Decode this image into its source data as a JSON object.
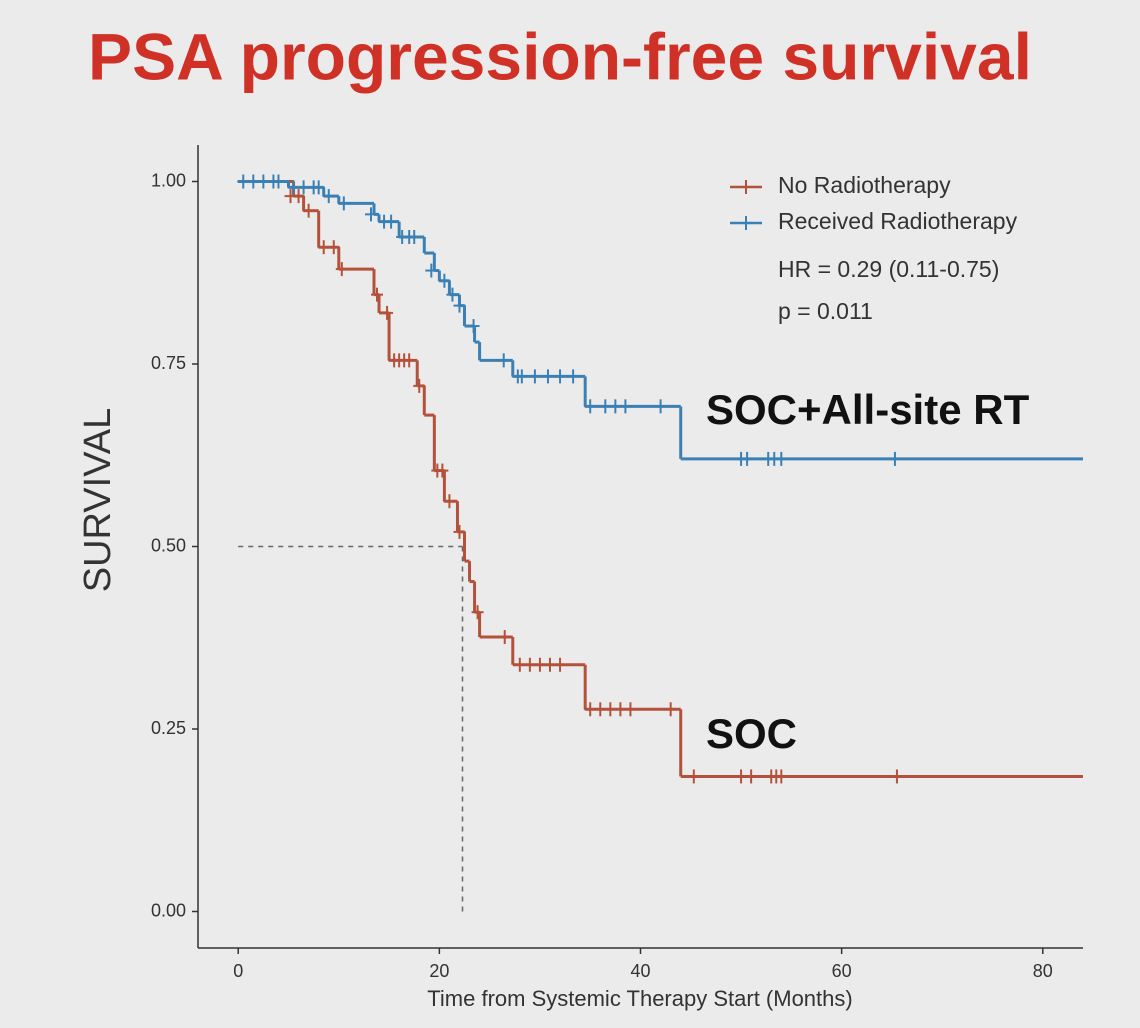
{
  "chart_data": {
    "type": "step",
    "title": "PSA progression-free survival",
    "xlabel": "Time from Systemic Therapy Start (Months)",
    "ylabel": "SURVIVAL",
    "xlim": [
      -4,
      84
    ],
    "ylim": [
      -0.05,
      1.05
    ],
    "xticks": [
      0,
      20,
      40,
      60,
      80
    ],
    "yticks": [
      {
        "value": 0,
        "label": "0.00"
      },
      0.25,
      {
        "value": 0.5,
        "label": "0.50"
      },
      0.75,
      {
        "value": 1,
        "label": "1.00"
      }
    ],
    "legend": "top-right",
    "annotations": [
      "HR = 0.29 (0.11-0.75)",
      "p = 0.011"
    ],
    "curve_labels": [
      "SOC+All-site RT",
      "SOC"
    ],
    "median": {
      "x": 22.3,
      "y": 0.5
    },
    "series": [
      {
        "name": "No Radiotherapy",
        "color": "#b4513b",
        "x": [
          0,
          5.5,
          6.5,
          8,
          10,
          13.5,
          14,
          15,
          17.8,
          18.5,
          19.5,
          20.5,
          21.8,
          22.5,
          23,
          23.5,
          24,
          27.3,
          34.5,
          44
        ],
        "values": [
          1,
          0.98,
          0.96,
          0.91,
          0.88,
          0.845,
          0.82,
          0.755,
          0.72,
          0.68,
          0.604,
          0.562,
          0.52,
          0.48,
          0.452,
          0.41,
          0.376,
          0.338,
          0.277,
          0.185
        ],
        "censor_x": [
          5.2,
          6,
          7,
          8.5,
          9.5,
          10.3,
          13.8,
          14.8,
          15.5,
          16,
          16.5,
          17,
          18,
          19.8,
          20.3,
          21,
          22,
          23.8,
          26.5,
          28,
          29,
          30,
          31,
          32,
          35,
          36,
          37,
          38,
          39,
          43,
          45.3,
          50,
          51,
          53,
          53.5,
          54,
          65.5
        ],
        "censor_values": [
          0.98,
          0.98,
          0.96,
          0.91,
          0.91,
          0.88,
          0.845,
          0.82,
          0.755,
          0.755,
          0.755,
          0.755,
          0.72,
          0.604,
          0.604,
          0.562,
          0.52,
          0.41,
          0.376,
          0.338,
          0.338,
          0.338,
          0.338,
          0.338,
          0.277,
          0.277,
          0.277,
          0.277,
          0.277,
          0.277,
          0.185,
          0.185,
          0.185,
          0.185,
          0.185,
          0.185,
          0.185
        ]
      },
      {
        "name": "Received Radiotherapy",
        "color": "#3b80b4",
        "x": [
          0,
          5,
          8.5,
          10,
          13.5,
          14,
          16,
          18.5,
          19.5,
          20,
          21,
          22,
          22.5,
          23.5,
          24,
          27.3,
          34.5,
          44
        ],
        "values": [
          1,
          0.992,
          0.98,
          0.97,
          0.955,
          0.945,
          0.924,
          0.902,
          0.878,
          0.864,
          0.845,
          0.83,
          0.802,
          0.78,
          0.755,
          0.733,
          0.692,
          0.62
        ],
        "censor_x": [
          0.5,
          1.5,
          2.5,
          3.5,
          4,
          5.5,
          6.5,
          7.5,
          8,
          9,
          10.5,
          13.2,
          14.5,
          15.2,
          16.3,
          17,
          17.5,
          19.2,
          20.5,
          21.3,
          22,
          23.4,
          26.4,
          27.8,
          28.2,
          29.5,
          30.8,
          32,
          33.3,
          35,
          36.5,
          37.5,
          38.5,
          42,
          50,
          50.6,
          52.7,
          53.3,
          54,
          65.3
        ],
        "censor_values": [
          1,
          1,
          1,
          1,
          1,
          0.992,
          0.992,
          0.992,
          0.992,
          0.98,
          0.97,
          0.955,
          0.945,
          0.945,
          0.924,
          0.924,
          0.924,
          0.878,
          0.864,
          0.845,
          0.83,
          0.802,
          0.755,
          0.733,
          0.733,
          0.733,
          0.733,
          0.733,
          0.733,
          0.692,
          0.692,
          0.692,
          0.692,
          0.692,
          0.62,
          0.62,
          0.62,
          0.62,
          0.62,
          0.62
        ]
      }
    ]
  }
}
